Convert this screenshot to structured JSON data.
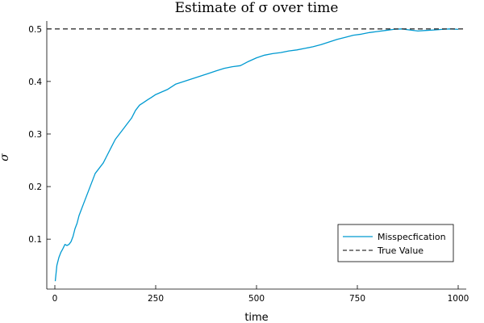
{
  "chart_data": {
    "type": "line",
    "title": "Estimate of σ over time",
    "xlabel": "time",
    "ylabel": "σ",
    "xlim": [
      -20,
      1020
    ],
    "ylim": [
      0.005,
      0.515
    ],
    "xticks": [
      0,
      250,
      500,
      750,
      1000
    ],
    "yticks": [
      0.1,
      0.2,
      0.3,
      0.4,
      0.5
    ],
    "xtick_labels": [
      "0",
      "250",
      "500",
      "750",
      "1000"
    ],
    "ytick_labels": [
      "0.1",
      "0.2",
      "0.3",
      "0.4",
      "0.5"
    ],
    "grid": false,
    "legend": "bottom-right",
    "series": [
      {
        "name": "Misspecfication",
        "color": "#009AD1",
        "style": "solid",
        "x": [
          1,
          5,
          10,
          15,
          20,
          25,
          30,
          35,
          40,
          45,
          50,
          55,
          60,
          65,
          70,
          75,
          80,
          85,
          90,
          95,
          100,
          110,
          120,
          130,
          140,
          150,
          160,
          170,
          180,
          190,
          200,
          210,
          220,
          230,
          240,
          250,
          265,
          280,
          300,
          320,
          340,
          360,
          380,
          400,
          420,
          440,
          460,
          480,
          500,
          520,
          540,
          560,
          580,
          600,
          620,
          640,
          660,
          680,
          700,
          720,
          740,
          760,
          780,
          800,
          820,
          840,
          860,
          880,
          900,
          920,
          940,
          960,
          980,
          1000
        ],
        "y": [
          0.02,
          0.05,
          0.065,
          0.075,
          0.082,
          0.09,
          0.088,
          0.09,
          0.095,
          0.105,
          0.12,
          0.13,
          0.145,
          0.155,
          0.165,
          0.175,
          0.185,
          0.195,
          0.205,
          0.215,
          0.225,
          0.235,
          0.245,
          0.26,
          0.275,
          0.29,
          0.3,
          0.31,
          0.32,
          0.33,
          0.345,
          0.355,
          0.36,
          0.365,
          0.37,
          0.375,
          0.38,
          0.385,
          0.395,
          0.4,
          0.405,
          0.41,
          0.415,
          0.42,
          0.425,
          0.428,
          0.43,
          0.438,
          0.445,
          0.45,
          0.453,
          0.455,
          0.458,
          0.46,
          0.463,
          0.466,
          0.47,
          0.475,
          0.48,
          0.484,
          0.488,
          0.49,
          0.493,
          0.495,
          0.497,
          0.499,
          0.5,
          0.498,
          0.496,
          0.497,
          0.498,
          0.499,
          0.5,
          0.499
        ]
      },
      {
        "name": "True Value",
        "color": "#333333",
        "style": "dashed",
        "x": [
          -20,
          1020
        ],
        "y": [
          0.5,
          0.5
        ]
      }
    ]
  }
}
